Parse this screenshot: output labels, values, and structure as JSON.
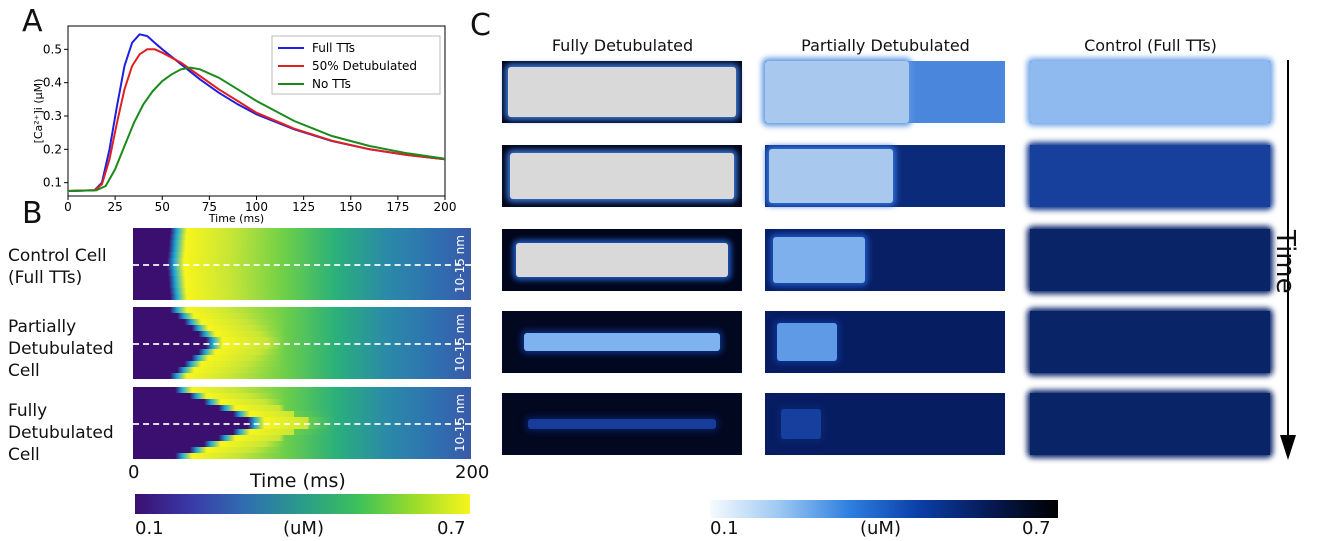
{
  "panels": {
    "a": "A",
    "b": "B",
    "c": "C"
  },
  "chart_data": [
    {
      "type": "line",
      "xlabel": "Time (ms)",
      "ylabel": "[Ca²⁺]i (µM)",
      "xlim": [
        0,
        200
      ],
      "ylim": [
        0.06,
        0.57
      ],
      "xticks": [
        0,
        25,
        50,
        75,
        100,
        125,
        150,
        175,
        200
      ],
      "yticks": [
        0.1,
        0.2,
        0.3,
        0.4,
        0.5
      ],
      "legend_position": "top-right",
      "series": [
        {
          "name": "Full TTs",
          "color": "#1f1fe0",
          "x": [
            0,
            14,
            18,
            22,
            26,
            30,
            34,
            38,
            42,
            46,
            50,
            60,
            70,
            80,
            90,
            100,
            120,
            140,
            160,
            180,
            200
          ],
          "y": [
            0.075,
            0.077,
            0.1,
            0.2,
            0.33,
            0.45,
            0.52,
            0.545,
            0.54,
            0.52,
            0.5,
            0.455,
            0.41,
            0.37,
            0.335,
            0.305,
            0.26,
            0.225,
            0.2,
            0.183,
            0.17
          ]
        },
        {
          "name": "50% Detubulated",
          "color": "#e02020",
          "x": [
            0,
            14,
            18,
            22,
            26,
            30,
            34,
            38,
            42,
            46,
            50,
            60,
            70,
            80,
            90,
            100,
            120,
            140,
            160,
            180,
            200
          ],
          "y": [
            0.075,
            0.077,
            0.095,
            0.17,
            0.28,
            0.38,
            0.45,
            0.485,
            0.5,
            0.5,
            0.49,
            0.46,
            0.42,
            0.38,
            0.345,
            0.31,
            0.262,
            0.226,
            0.2,
            0.183,
            0.17
          ]
        },
        {
          "name": "No TTs",
          "color": "#1a8a1a",
          "x": [
            0,
            15,
            20,
            25,
            30,
            35,
            40,
            45,
            50,
            55,
            60,
            65,
            70,
            80,
            90,
            100,
            120,
            140,
            160,
            180,
            200
          ],
          "y": [
            0.075,
            0.077,
            0.09,
            0.14,
            0.21,
            0.28,
            0.335,
            0.375,
            0.405,
            0.425,
            0.44,
            0.445,
            0.44,
            0.415,
            0.38,
            0.345,
            0.285,
            0.24,
            0.21,
            0.188,
            0.172
          ]
        }
      ]
    },
    {
      "type": "heatmap",
      "xlabel": "Time (ms)",
      "xlim": [
        0,
        200
      ],
      "xtick_labels": [
        "0",
        "200"
      ],
      "colorbar": {
        "min": 0.1,
        "max": 0.7,
        "min_label": "0.1",
        "max_label": "0.7",
        "unit": "(uM)"
      },
      "rows": [
        {
          "label_lines": [
            "Control Cell",
            "(Full TTs)"
          ],
          "side_label": "10-15 nm",
          "activation_ms": [
            22,
            20
          ]
        },
        {
          "label_lines": [
            "Partially",
            "Detubulated",
            "Cell"
          ],
          "side_label": "10-15 nm",
          "activation_ms": [
            22,
            45
          ]
        },
        {
          "label_lines": [
            "Fully",
            "Detubulated",
            "Cell"
          ],
          "side_label": "10-15 nm",
          "activation_ms": [
            25,
            72
          ]
        }
      ]
    },
    {
      "type": "heatmap",
      "columns": [
        "Fully Detubulated",
        "Partially Detubulated",
        "Control (Full TTs)"
      ],
      "time_label": "Time",
      "colorbar": {
        "min": 0.1,
        "max": 0.7,
        "min_label": "0.1",
        "max_label": "0.7",
        "unit": "(uM)"
      },
      "snapshots_per_column": 5
    }
  ]
}
